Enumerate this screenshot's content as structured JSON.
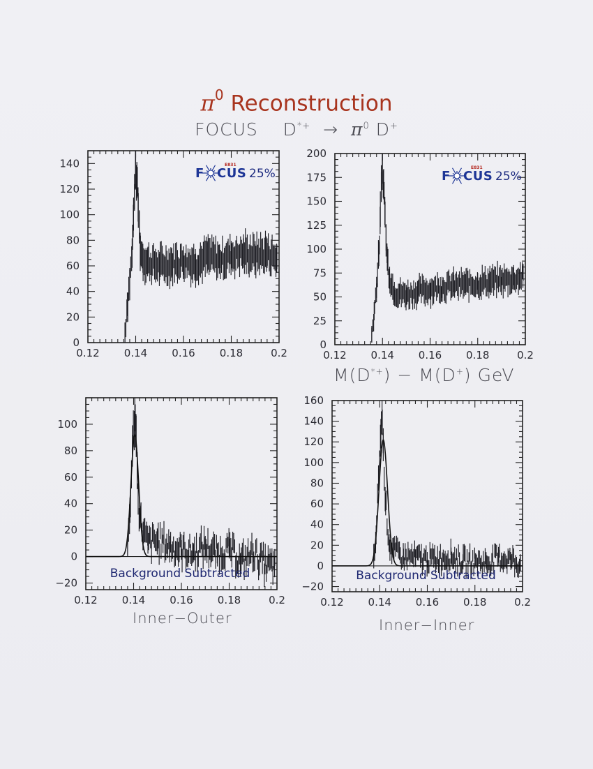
{
  "title": {
    "symbol": "π",
    "superscript": "0",
    "text": "Reconstruction"
  },
  "subtitle": {
    "experiment": "FOCUS",
    "parent": "D",
    "parent_sup": "*+",
    "arrow": "→",
    "pi": "π",
    "pi_sup": "0",
    "daughter": "D",
    "daughter_sup": "+"
  },
  "shared_xlabel": {
    "text1": "M(D",
    "sup1": "*+",
    "text2": ") − M(D",
    "sup2": "+",
    "text3": ")  GeV"
  },
  "logo": {
    "text_left": "F",
    "text_right": "CUS",
    "tag": "E831",
    "percent": "25%"
  },
  "background_label": "Background Subtracted",
  "colors": {
    "title": "#a8341e",
    "logo_blue": "#1d3596",
    "logo_red": "#b3261e",
    "label_navy": "#1d2670"
  },
  "chart_data": [
    {
      "type": "scatter",
      "id": "top-left",
      "style": "error-bar histogram",
      "x_range": [
        0.12,
        0.2
      ],
      "ylim": [
        0,
        150
      ],
      "x_ticks": [
        0.12,
        0.14,
        0.16,
        0.18,
        0.2
      ],
      "y_ticks": [
        0,
        20,
        40,
        60,
        80,
        100,
        120,
        140
      ],
      "stamp": "25%",
      "x": [
        0.1355,
        0.1365,
        0.1375,
        0.1385,
        0.139,
        0.1395,
        0.14,
        0.1405,
        0.141,
        0.1415,
        0.142,
        0.143,
        0.145,
        0.15,
        0.155,
        0.16,
        0.165,
        0.17,
        0.175,
        0.18,
        0.185,
        0.19,
        0.195,
        0.199
      ],
      "y": [
        8,
        30,
        48,
        70,
        95,
        118,
        135,
        127,
        108,
        90,
        72,
        66,
        63,
        60,
        62,
        64,
        62,
        67,
        65,
        68,
        70,
        68,
        70,
        66
      ]
    },
    {
      "type": "scatter",
      "id": "top-right",
      "style": "error-bar histogram",
      "x_range": [
        0.12,
        0.2
      ],
      "ylim": [
        0,
        200
      ],
      "x_ticks": [
        0.12,
        0.14,
        0.16,
        0.18,
        0.2
      ],
      "y_ticks": [
        0,
        25,
        50,
        75,
        100,
        125,
        150,
        175,
        200
      ],
      "stamp": "25%",
      "x": [
        0.1355,
        0.1365,
        0.1375,
        0.1385,
        0.139,
        0.1395,
        0.14,
        0.1405,
        0.141,
        0.1415,
        0.142,
        0.143,
        0.145,
        0.15,
        0.155,
        0.16,
        0.165,
        0.17,
        0.175,
        0.18,
        0.185,
        0.19,
        0.195,
        0.199
      ],
      "y": [
        10,
        35,
        60,
        95,
        130,
        165,
        185,
        168,
        140,
        112,
        90,
        70,
        55,
        52,
        56,
        58,
        60,
        62,
        63,
        64,
        66,
        67,
        69,
        71
      ]
    },
    {
      "type": "scatter",
      "id": "bottom-left",
      "style": "error-bar histogram with gaussian fit",
      "x_range": [
        0.12,
        0.2
      ],
      "ylim": [
        -25,
        120
      ],
      "x_ticks": [
        0.12,
        0.14,
        0.16,
        0.18,
        0.2
      ],
      "y_ticks": [
        -20,
        0,
        20,
        40,
        60,
        80,
        100
      ],
      "xlabel": "Inner−Outer",
      "fit": {
        "mean": 0.1405,
        "sigma": 0.0016,
        "amplitude": 92
      },
      "x": [
        0.1375,
        0.1385,
        0.1395,
        0.1405,
        0.141,
        0.1415,
        0.1425,
        0.144,
        0.146,
        0.15,
        0.155,
        0.16,
        0.165,
        0.17,
        0.175,
        0.18,
        0.185,
        0.19,
        0.195,
        0.199
      ],
      "y": [
        8,
        35,
        80,
        108,
        95,
        62,
        30,
        18,
        10,
        12,
        8,
        5,
        3,
        8,
        2,
        6,
        -4,
        3,
        -6,
        -8
      ]
    },
    {
      "type": "scatter",
      "id": "bottom-right",
      "style": "error-bar histogram with gaussian fit",
      "x_range": [
        0.12,
        0.2
      ],
      "ylim": [
        -25,
        160
      ],
      "x_ticks": [
        0.12,
        0.14,
        0.16,
        0.18,
        0.2
      ],
      "y_ticks": [
        -20,
        0,
        20,
        40,
        60,
        80,
        100,
        120,
        140,
        160
      ],
      "xlabel": "Inner−Inner",
      "fit": {
        "mean": 0.1415,
        "sigma": 0.0018,
        "amplitude": 122
      },
      "x": [
        0.1375,
        0.1385,
        0.1395,
        0.1405,
        0.141,
        0.1415,
        0.1425,
        0.144,
        0.146,
        0.15,
        0.155,
        0.16,
        0.165,
        0.17,
        0.175,
        0.18,
        0.185,
        0.19,
        0.195,
        0.199
      ],
      "y": [
        5,
        30,
        85,
        128,
        150,
        115,
        60,
        22,
        14,
        9,
        8,
        6,
        7,
        10,
        4,
        5,
        3,
        8,
        6,
        2
      ]
    }
  ]
}
